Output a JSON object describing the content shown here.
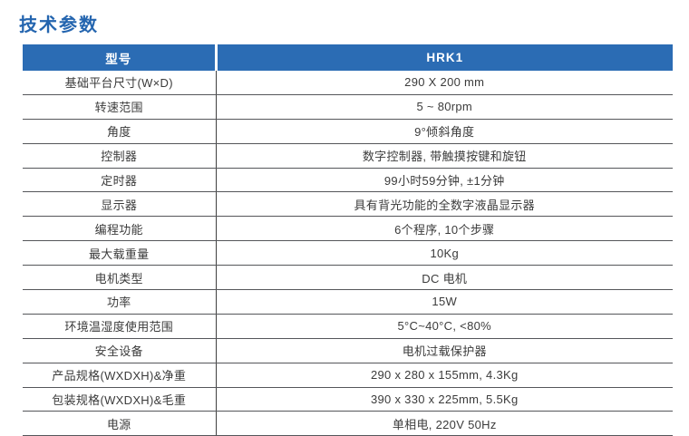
{
  "title": "技术参数",
  "colors": {
    "header_bg": "#2B6CB4",
    "header_text": "#FFFFFF",
    "title_text": "#2465AF",
    "row_border": "#55565A",
    "cell_text": "#3B3B3B"
  },
  "table": {
    "columns": [
      {
        "label": "型号"
      },
      {
        "label": "HRK1"
      }
    ],
    "rows": [
      {
        "label": "基础平台尺寸(W×D)",
        "value": "290 X 200 mm"
      },
      {
        "label": "转速范围",
        "value": "5 ~ 80rpm"
      },
      {
        "label": "角度",
        "value": "9°倾斜角度"
      },
      {
        "label": "控制器",
        "value": "数字控制器, 带触摸按键和旋钮"
      },
      {
        "label": "定时器",
        "value": "99小时59分钟, ±1分钟"
      },
      {
        "label": "显示器",
        "value": "具有背光功能的全数字液晶显示器"
      },
      {
        "label": "编程功能",
        "value": "6个程序, 10个步骤"
      },
      {
        "label": "最大载重量",
        "value": "10Kg"
      },
      {
        "label": "电机类型",
        "value": "DC 电机"
      },
      {
        "label": "功率",
        "value": "15W"
      },
      {
        "label": "环境温湿度使用范围",
        "value": "5°C~40°C, <80%"
      },
      {
        "label": "安全设备",
        "value": "电机过载保护器"
      },
      {
        "label": "产品规格(WXDXH)&净重",
        "value": "290 x 280 x 155mm, 4.3Kg"
      },
      {
        "label": "包装规格(WXDXH)&毛重",
        "value": "390 x 330 x 225mm, 5.5Kg"
      },
      {
        "label": "电源",
        "value": "单相电, 220V 50Hz"
      }
    ]
  }
}
